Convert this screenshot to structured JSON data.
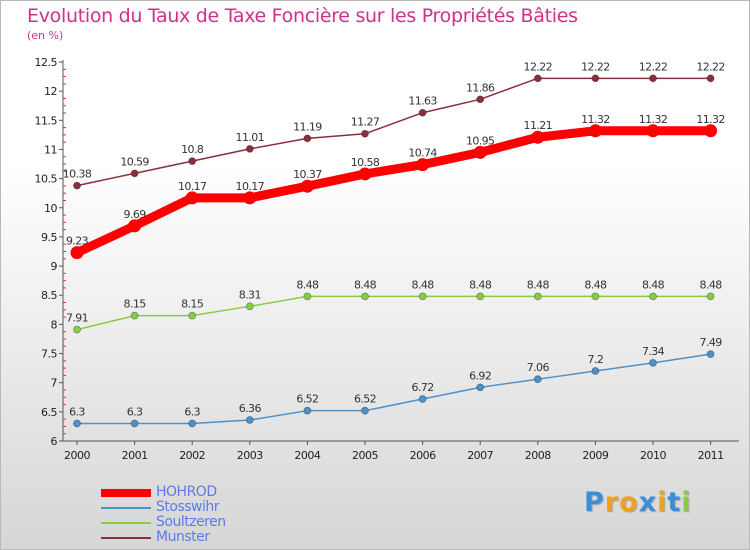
{
  "chart_data": {
    "type": "line",
    "title": "Evolution du Taux de Taxe Foncière sur les Propriétés Bâties",
    "subtitle": "(en %)",
    "x": [
      "2000",
      "2001",
      "2002",
      "2003",
      "2004",
      "2005",
      "2006",
      "2007",
      "2008",
      "2009",
      "2010",
      "2011"
    ],
    "ylim": [
      6,
      12.5
    ],
    "yticks": [
      "6",
      "6.5",
      "7",
      "7.5",
      "8",
      "8.5",
      "9",
      "9.5",
      "10",
      "10.5",
      "11",
      "11.5",
      "12",
      "12.5"
    ],
    "grid": false,
    "legend_position": "bottom-left",
    "series": [
      {
        "name": "HOHROD",
        "color": "#ff0000",
        "values": [
          9.23,
          9.69,
          10.17,
          10.17,
          10.37,
          10.58,
          10.74,
          10.95,
          11.21,
          11.32,
          11.32,
          11.32
        ],
        "labels": [
          "9.23",
          "9.69",
          "10.17",
          "10.17",
          "10.37",
          "10.58",
          "10.74",
          "10.95",
          "11.21",
          "11.32",
          "11.32",
          "11.32"
        ]
      },
      {
        "name": "Stosswihr",
        "color": "#4e91c8",
        "values": [
          6.3,
          6.3,
          6.3,
          6.36,
          6.52,
          6.52,
          6.72,
          6.92,
          7.06,
          7.2,
          7.34,
          7.49
        ],
        "labels": [
          "6.3",
          "6.3",
          "6.3",
          "6.36",
          "6.52",
          "6.52",
          "6.72",
          "6.92",
          "7.06",
          "7.2",
          "7.34",
          "7.49"
        ]
      },
      {
        "name": "Soultzeren",
        "color": "#88cc44",
        "values": [
          7.91,
          8.15,
          8.15,
          8.31,
          8.48,
          8.48,
          8.48,
          8.48,
          8.48,
          8.48,
          8.48,
          8.48
        ],
        "labels": [
          "7.91",
          "8.15",
          "8.15",
          "8.31",
          "8.48",
          "8.48",
          "8.48",
          "8.48",
          "8.48",
          "8.48",
          "8.48",
          "8.48"
        ]
      },
      {
        "name": "Munster",
        "color": "#8b2f3a",
        "values": [
          10.38,
          10.59,
          10.8,
          11.01,
          11.19,
          11.27,
          11.63,
          11.86,
          12.22,
          12.22,
          12.22,
          12.22
        ],
        "labels": [
          "10.38",
          "10.59",
          "10.8",
          "11.01",
          "11.19",
          "11.27",
          "11.63",
          "11.86",
          "12.22",
          "12.22",
          "12.22",
          "12.22"
        ]
      }
    ]
  },
  "logo": {
    "letters": [
      "P",
      "r",
      "o",
      "x",
      "i",
      "t",
      "i"
    ],
    "colors": [
      "#3a8fd8",
      "#f0a020",
      "#f0a020",
      "#3a8fd8",
      "#f0a020",
      "#3a8fd8",
      "#88cc44"
    ]
  }
}
